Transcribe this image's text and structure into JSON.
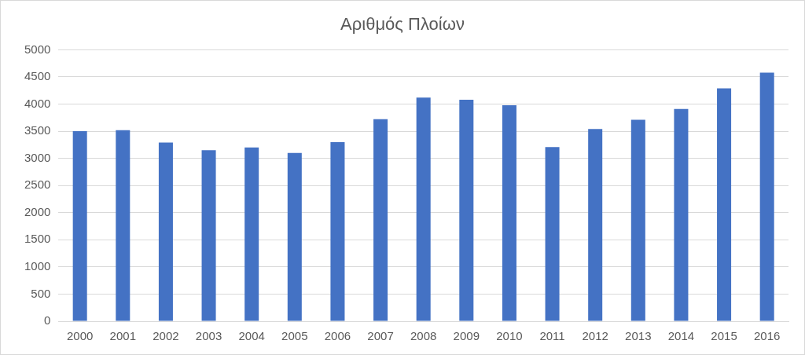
{
  "chart_data": {
    "type": "bar",
    "title": "Αριθμός Πλοίων",
    "categories": [
      "2000",
      "2001",
      "2002",
      "2003",
      "2004",
      "2005",
      "2006",
      "2007",
      "2008",
      "2009",
      "2010",
      "2011",
      "2012",
      "2013",
      "2014",
      "2015",
      "2016"
    ],
    "values": [
      3500,
      3520,
      3290,
      3150,
      3200,
      3100,
      3300,
      3720,
      4120,
      4080,
      3980,
      3210,
      3540,
      3710,
      3910,
      4290,
      4580
    ],
    "color": "#4472c4",
    "ylim": [
      0,
      5000
    ],
    "yticks": [
      0,
      500,
      1000,
      1500,
      2000,
      2500,
      3000,
      3500,
      4000,
      4500,
      5000
    ],
    "grid": "y",
    "legend": false
  }
}
